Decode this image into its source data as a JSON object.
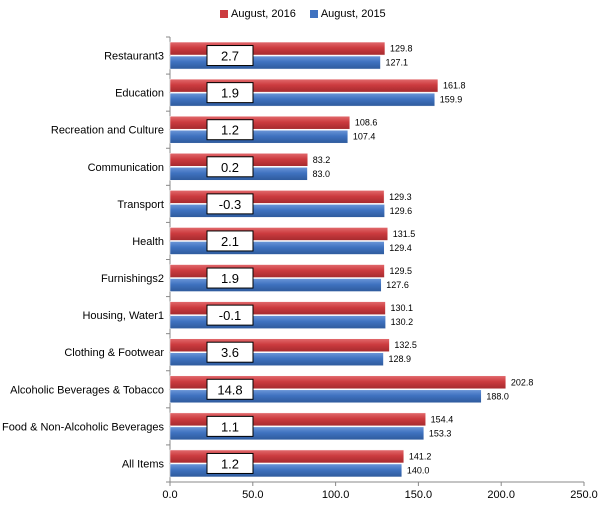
{
  "chart_data": {
    "type": "bar",
    "orientation": "horizontal",
    "categories": [
      "Restaurant3",
      "Education",
      "Recreation and Culture",
      "Communication",
      "Transport",
      "Health",
      "Furnishings2",
      "Housing, Water1",
      "Clothing & Footwear",
      "Alcoholic Beverages & Tobacco",
      "Food & Non-Alcoholic Beverages",
      "All Items"
    ],
    "series": [
      {
        "name": "August, 2016",
        "color": "#cc3b3f",
        "values": [
          129.8,
          161.8,
          108.6,
          83.2,
          129.3,
          131.5,
          129.5,
          130.1,
          132.5,
          202.8,
          154.4,
          141.2
        ],
        "labels": [
          "129.8",
          "161.8",
          "108.6",
          "83.2",
          "129.3",
          "131.5",
          "129.5",
          "130.1",
          "132.5",
          "202.8",
          "154.4",
          "141.2"
        ]
      },
      {
        "name": "August, 2015",
        "color": "#3f72c0",
        "values": [
          127.1,
          159.9,
          107.4,
          83.0,
          129.6,
          129.4,
          127.6,
          130.2,
          128.9,
          188.0,
          153.3,
          140.0
        ],
        "labels": [
          "127.1",
          "159.9",
          "107.4",
          "83.0",
          "129.6",
          "129.4",
          "127.6",
          "130.2",
          "128.9",
          "188.0",
          "153.3",
          "140.0"
        ]
      }
    ],
    "annotations": [
      "2.7",
      "1.9",
      "1.2",
      "0.2",
      "-0.3",
      "2.1",
      "1.9",
      "-0.1",
      "3.6",
      "14.8",
      "1.1",
      "1.2"
    ],
    "xlim": [
      0,
      250
    ],
    "xticks": [
      0,
      50,
      100,
      150,
      200,
      250
    ],
    "xtick_labels": [
      "0.0",
      "50.0",
      "100.0",
      "150.0",
      "200.0",
      "250.0"
    ],
    "grid": false,
    "legend_position": "top",
    "title": "",
    "xlabel": "",
    "ylabel": ""
  }
}
